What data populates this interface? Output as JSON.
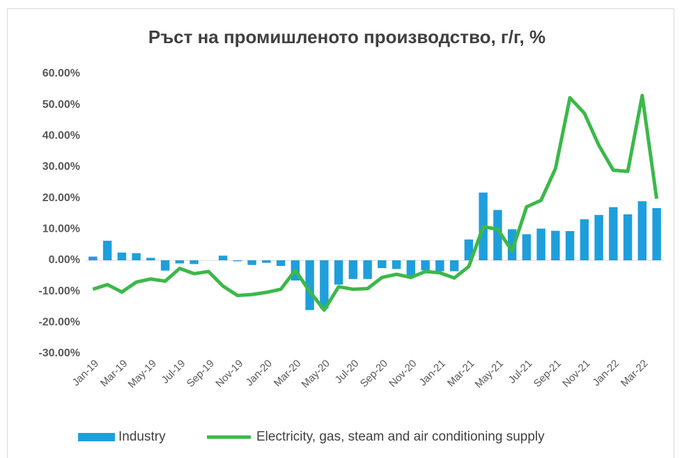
{
  "chart_data": {
    "type": "bar_line",
    "title": "Ръст на промишленото производство, г/г, %",
    "categories": [
      "Jan-19",
      null,
      "Mar-19",
      null,
      "May-19",
      null,
      "Jul-19",
      null,
      "Sep-19",
      null,
      "Nov-19",
      null,
      "Jan-20",
      null,
      "Mar-20",
      null,
      "May-20",
      null,
      "Jul-20",
      null,
      "Sep-20",
      null,
      "Nov-20",
      null,
      "Jan-21",
      null,
      "Mar-21",
      null,
      "May-21",
      null,
      "Jul-21",
      null,
      "Sep-21",
      null,
      "Nov-21",
      null,
      "Jan-22",
      null,
      "Mar-22",
      null
    ],
    "series": [
      {
        "name": "Industry",
        "type": "bar",
        "color": "#1e9fdb",
        "values": [
          1.2,
          6.3,
          2.5,
          2.3,
          0.8,
          -3.3,
          -1.0,
          -1.2,
          0.0,
          1.5,
          -0.3,
          -1.5,
          -0.8,
          -1.8,
          -6.5,
          -16.0,
          -15.5,
          -7.8,
          -6.0,
          -6.0,
          -2.5,
          -2.8,
          -5.5,
          -3.2,
          -3.5,
          -3.5,
          6.7,
          21.8,
          16.2,
          10.0,
          8.4,
          10.2,
          9.5,
          9.4,
          13.2,
          14.6,
          17.1,
          14.8,
          19.0,
          16.8
        ]
      },
      {
        "name": "Electricity, gas, steam and air conditioning supply",
        "type": "line",
        "color": "#3cb84a",
        "values": [
          -9.3,
          -7.8,
          -10.2,
          -7.0,
          -6.0,
          -6.7,
          -2.6,
          -4.3,
          -3.6,
          -8.3,
          -11.3,
          -11.0,
          -10.3,
          -9.3,
          -3.2,
          -10.0,
          -16.0,
          -8.5,
          -9.3,
          -9.1,
          -5.5,
          -4.5,
          -5.5,
          -3.6,
          -4.0,
          -5.7,
          -2.0,
          10.8,
          10.0,
          3.0,
          17.2,
          19.3,
          29.5,
          52.3,
          47.3,
          37.0,
          29.0,
          28.6,
          53.0,
          19.8
        ]
      }
    ],
    "ylim": [
      -30,
      60
    ],
    "yticks": [
      {
        "value": -30,
        "label": "-30.00%"
      },
      {
        "value": -20,
        "label": "-20.00%"
      },
      {
        "value": -10,
        "label": "-10.00%"
      },
      {
        "value": 0,
        "label": "0.00%"
      },
      {
        "value": 10,
        "label": "10.00%"
      },
      {
        "value": 20,
        "label": "20.00%"
      },
      {
        "value": 30,
        "label": "30.00%"
      },
      {
        "value": 40,
        "label": "40.00%"
      },
      {
        "value": 50,
        "label": "50.00%"
      },
      {
        "value": 60,
        "label": "60.00%"
      }
    ],
    "legend": "bottom"
  }
}
